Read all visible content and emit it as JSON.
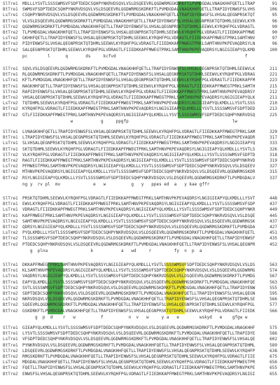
{
  "alignment": {
    "sequence_names": [
      "SlTre1",
      "BtTre1",
      "LsTre1",
      "BtTre1",
      "SlTre2",
      "BtTre2",
      "LsTre2",
      "BtTre2",
      "BtTre2"
    ],
    "blocks": [
      {
        "ends": [
          "91",
          "106",
          "95",
          "96",
          "90",
          "90",
          "97",
          "96",
          "100"
        ]
      },
      {
        "ends": [
          "211",
          "221",
          "223",
          "215",
          "212",
          "211",
          "210",
          "213",
          "225"
        ]
      },
      {
        "ends": [
          "329",
          "317",
          "333",
          "326",
          "318",
          "319",
          "327",
          "315",
          "337"
        ]
      },
      {
        "ends": [
          "448",
          "437",
          "449",
          "445",
          "437",
          "427",
          "451",
          "435",
          "452"
        ]
      },
      {
        "ends": [
          "563",
          "574",
          "567",
          "563",
          "555",
          "595",
          "566",
          "577",
          "566"
        ]
      },
      {
        "ends": [
          "575",
          "586",
          "602",
          "589",
          "638",
          "675",
          "656",
          "655",
          "655"
        ]
      }
    ],
    "consensus_lines": [
      "pc        l      q       ds     kcfvd                                                   f        ",
      "                   w           g     ppgfp                                         lw           ",
      "ng y  rv pl  mv             e   w          g   y   ppes ed  a   y kae gffr                     ",
      "   g  plna                 k           a   wd     r         fy  n  p  a                         ",
      "     g  p  d    r   w          f          n  v   w     y a   e        wskyd   e    gfgw w       "
    ]
  },
  "colors": {
    "highlight_green": "#2ca02c",
    "highlight_yellow": "#e8e000",
    "text": "#333333",
    "variant_red": "#cc2222"
  }
}
